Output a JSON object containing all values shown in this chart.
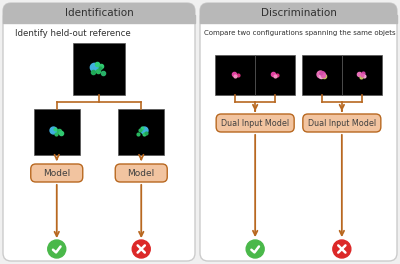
{
  "bg_color": "#f0f0f0",
  "panel_bg": "#ffffff",
  "header_bg": "#b8b8b8",
  "box_fill": "#f2c4a0",
  "box_edge": "#b86820",
  "arrow_color": "#b86820",
  "green_check": "#4ab84a",
  "red_cross": "#dc2828",
  "left_title": "Identification",
  "right_title": "Discrimination",
  "left_subtitle": "Identify held-out reference",
  "right_subtitle": "Compare two configurations spanning the same objets",
  "left_model_label": "Model",
  "right_model_label": "Dual Input Model",
  "font_color": "#404040",
  "panel_edge": "#cccccc"
}
